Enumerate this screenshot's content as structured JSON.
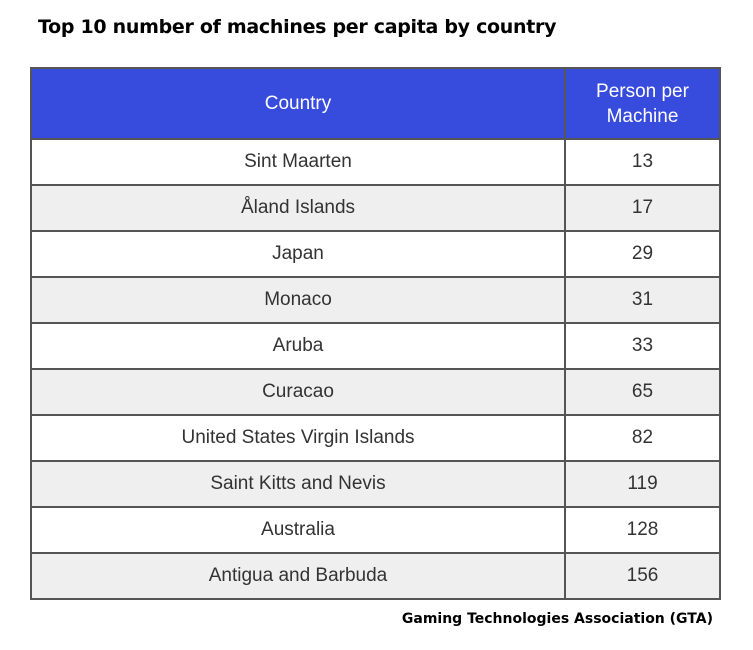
{
  "title": "Top 10 number of machines per capita by country",
  "chart_data": {
    "type": "table",
    "columns": [
      "Country",
      "Person per Machine"
    ],
    "header": {
      "col1": "Country",
      "col2_line1": "Person per",
      "col2_line2": "Machine"
    },
    "rows": [
      {
        "country": "Sint Maarten",
        "value": "13"
      },
      {
        "country": "Åland Islands",
        "value": "17"
      },
      {
        "country": "Japan",
        "value": "29"
      },
      {
        "country": "Monaco",
        "value": "31"
      },
      {
        "country": "Aruba",
        "value": "33"
      },
      {
        "country": "Curacao",
        "value": "65"
      },
      {
        "country": "United States Virgin Islands",
        "value": "82"
      },
      {
        "country": "Saint Kitts and Nevis",
        "value": "119"
      },
      {
        "country": "Australia",
        "value": "128"
      },
      {
        "country": "Antigua and Barbuda",
        "value": "156"
      }
    ]
  },
  "source": "Gaming Technologies Association (GTA)",
  "colors": {
    "header": "#374bdc",
    "alt_row": "#efefef"
  }
}
